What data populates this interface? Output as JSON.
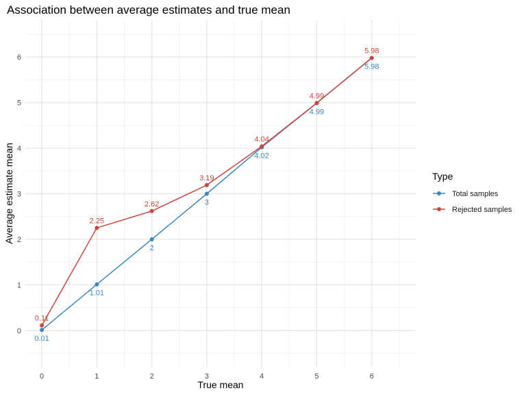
{
  "chart_data": {
    "type": "line",
    "title": "Association between average estimates and true mean",
    "xlabel": "True mean",
    "ylabel": "Average estimate mean",
    "x": [
      0,
      1,
      2,
      3,
      4,
      5,
      6
    ],
    "xlim": [
      -0.3,
      6.8
    ],
    "ylim": [
      -0.8,
      6.8
    ],
    "x_ticks": [
      0,
      1,
      2,
      3,
      4,
      5,
      6
    ],
    "y_ticks": [
      0,
      1,
      2,
      3,
      4,
      5,
      6
    ],
    "grid": true,
    "legend": {
      "title": "Type",
      "position": "right"
    },
    "series": [
      {
        "name": "Total samples",
        "color": "#3a87bf",
        "values": [
          0.01,
          1.01,
          2,
          3,
          4.02,
          4.99,
          5.98
        ],
        "labels": [
          "0.01",
          "1.01",
          "2",
          "3",
          "4.02",
          "4.99",
          "5.98"
        ],
        "label_position": "below"
      },
      {
        "name": "Rejected samples",
        "color": "#c9473d",
        "values": [
          0.11,
          2.25,
          2.62,
          3.19,
          4.04,
          4.99,
          5.98
        ],
        "labels": [
          "0.11",
          "2.25",
          "2.62",
          "3.19",
          "4.04",
          "4.99",
          "5.98"
        ],
        "label_position": "above"
      }
    ]
  }
}
